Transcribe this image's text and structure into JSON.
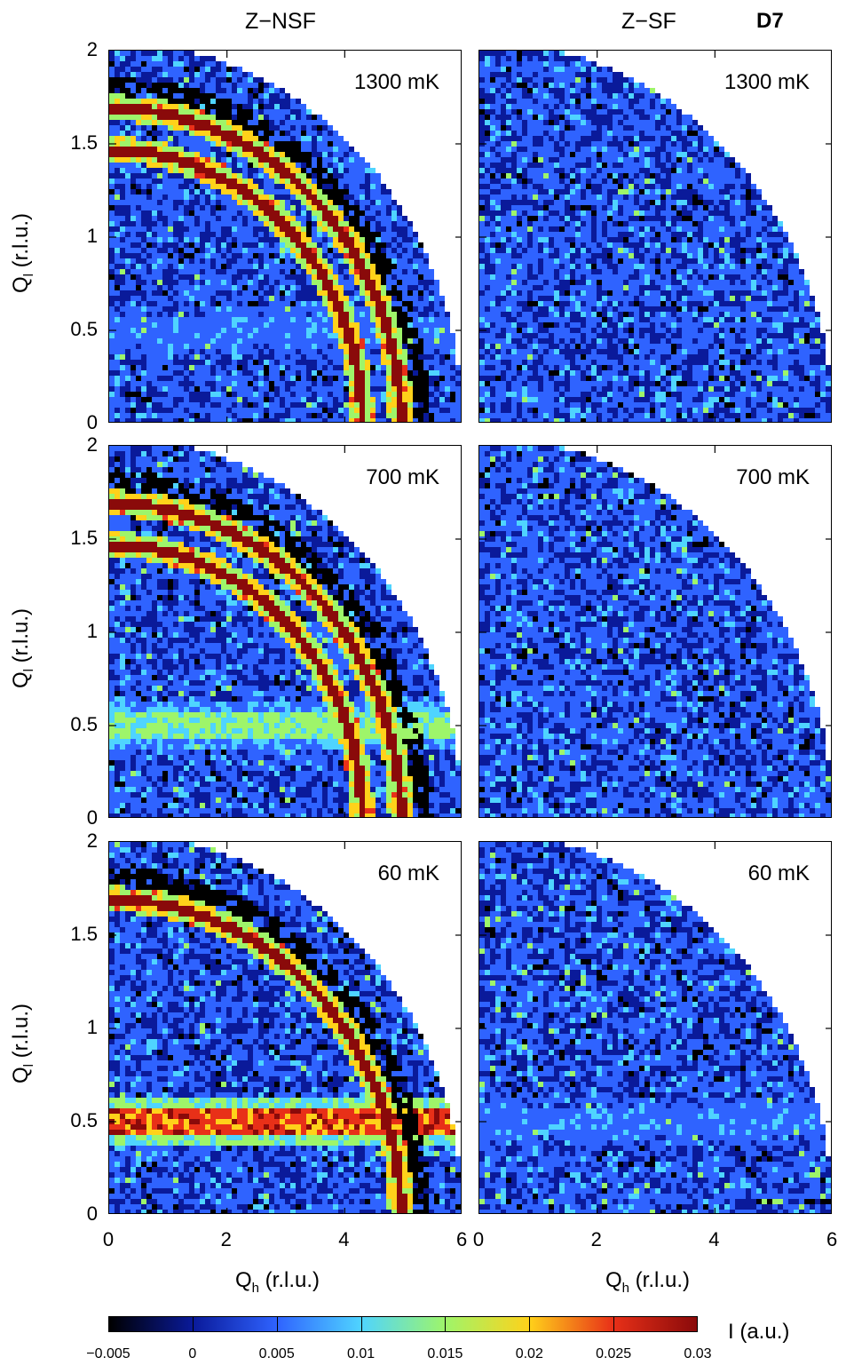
{
  "columns": {
    "left_title": "Z−NSF",
    "right_title": "Z−SF",
    "instrument": "D7"
  },
  "colors": {
    "low": "#000000",
    "c0": "#0a1a9a",
    "c005": "#2f63ff",
    "c01": "#4fd4ff",
    "c015": "#9ef56a",
    "c02": "#ffd21a",
    "c025": "#e83018",
    "c03": "#8a0a0a"
  },
  "chart_data": [
    {
      "type": "heatmap",
      "panel": "Z-NSF",
      "temperature": "1300 mK",
      "xlim": [
        0,
        6
      ],
      "ylim": [
        0,
        2
      ],
      "features": {
        "powder_rings_radius_qh": [
          4.95,
          4.3
        ],
        "flat_band_ql": 0.5,
        "band_strength": "weak"
      }
    },
    {
      "type": "heatmap",
      "panel": "Z-SF",
      "temperature": "1300 mK",
      "xlim": [
        0,
        6
      ],
      "ylim": [
        0,
        2
      ],
      "features": {
        "powder_rings_radius_qh": [],
        "flat_band_ql": null,
        "band_strength": "none"
      }
    },
    {
      "type": "heatmap",
      "panel": "Z-NSF",
      "temperature": "700 mK",
      "xlim": [
        0,
        6
      ],
      "ylim": [
        0,
        2
      ],
      "features": {
        "powder_rings_radius_qh": [
          4.95,
          4.3
        ],
        "flat_band_ql": 0.5,
        "band_strength": "medium"
      }
    },
    {
      "type": "heatmap",
      "panel": "Z-SF",
      "temperature": "700 mK",
      "xlim": [
        0,
        6
      ],
      "ylim": [
        0,
        2
      ],
      "features": {
        "powder_rings_radius_qh": [],
        "flat_band_ql": null,
        "band_strength": "none"
      }
    },
    {
      "type": "heatmap",
      "panel": "Z-NSF",
      "temperature": "60 mK",
      "xlim": [
        0,
        6
      ],
      "ylim": [
        0,
        2
      ],
      "features": {
        "powder_rings_radius_qh": [
          4.95
        ],
        "flat_band_ql": 0.5,
        "band_strength": "strong"
      }
    },
    {
      "type": "heatmap",
      "panel": "Z-SF",
      "temperature": "60 mK",
      "xlim": [
        0,
        6
      ],
      "ylim": [
        0,
        2
      ],
      "features": {
        "powder_rings_radius_qh": [],
        "flat_band_ql": 0.5,
        "band_strength": "weak"
      }
    }
  ],
  "axes": {
    "ylabel_main": "Q",
    "ylabel_sub": "l",
    "ylabel_unit": " (r.l.u.)",
    "xlabel_main": "Q",
    "xlabel_sub": "h",
    "xlabel_unit": " (r.l.u.)",
    "yticks": [
      "0",
      "0.5",
      "1",
      "1.5",
      "2"
    ],
    "xticks_left": [
      "0",
      "2",
      "4",
      "6"
    ],
    "xticks_right": [
      "0",
      "2",
      "4",
      "6"
    ]
  },
  "colorbar": {
    "label": "I (a.u.)",
    "min": -0.005,
    "max": 0.03,
    "ticks": [
      "−0.005",
      "0",
      "0.005",
      "0.01",
      "0.015",
      "0.02",
      "0.025",
      "0.03"
    ]
  }
}
